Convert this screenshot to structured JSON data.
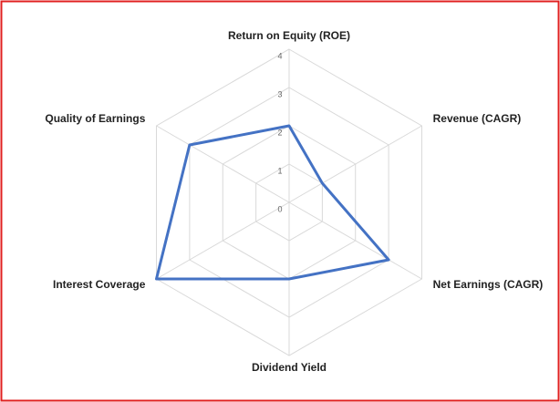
{
  "chart_data": {
    "type": "radar",
    "categories": [
      "Return on Equity (ROE)",
      "Revenue (CAGR)",
      "Net Earnings (CAGR)",
      "Dividend Yield",
      "Interest Coverage",
      "Quality of Earnings"
    ],
    "values": [
      2,
      1,
      3,
      2,
      4,
      3
    ],
    "color": "#4472c4",
    "ylim": [
      0,
      4
    ],
    "yticks": [
      0,
      1,
      2,
      3,
      4
    ],
    "grid": true
  }
}
